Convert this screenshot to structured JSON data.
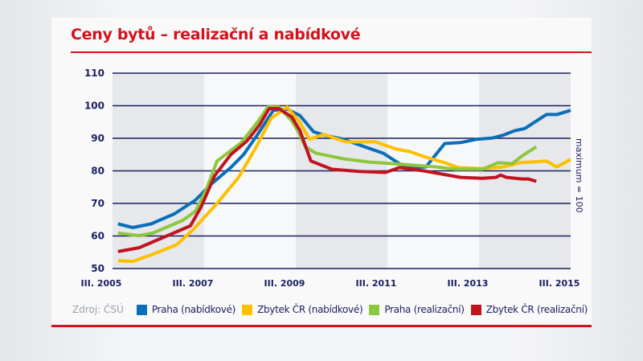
{
  "title": "Ceny bytů – realizační a nabídkové",
  "source": "Zdroj: ČSÚ",
  "chart_data": {
    "type": "line",
    "title": "Ceny bytů – realizační a nabídkové",
    "ylabel": "maximum = 100",
    "ylim": [
      50,
      110
    ],
    "yticks": [
      "50",
      "60",
      "70",
      "80",
      "90",
      "100",
      "110"
    ],
    "xlim": [
      2005.5,
      2015.5
    ],
    "xticks": [
      {
        "x": 2005.5,
        "label": "III. 2005"
      },
      {
        "x": 2007.5,
        "label": "III. 2007"
      },
      {
        "x": 2009.5,
        "label": "III. 2009"
      },
      {
        "x": 2011.5,
        "label": "III. 2011"
      },
      {
        "x": 2013.5,
        "label": "III. 2013"
      },
      {
        "x": 2015.5,
        "label": "III. 2015"
      }
    ],
    "grid": true,
    "legend": "bottom",
    "series": [
      {
        "name": "Praha (nabídkové)",
        "color": "#0a6fb8",
        "points": [
          [
            2005.62,
            63.7
          ],
          [
            2005.94,
            62.6
          ],
          [
            2006.34,
            63.7
          ],
          [
            2006.85,
            66.8
          ],
          [
            2007.31,
            71
          ],
          [
            2007.66,
            76
          ],
          [
            2008.08,
            81
          ],
          [
            2008.36,
            85
          ],
          [
            2008.66,
            91
          ],
          [
            2008.89,
            96
          ],
          [
            2009.01,
            98.6
          ],
          [
            2009.31,
            99
          ],
          [
            2009.59,
            97
          ],
          [
            2009.89,
            92
          ],
          [
            2010.11,
            91
          ],
          [
            2010.54,
            89.7
          ],
          [
            2011.0,
            87.4
          ],
          [
            2011.41,
            85.4
          ],
          [
            2011.76,
            82.2
          ],
          [
            2011.99,
            81
          ],
          [
            2012.34,
            81.2
          ],
          [
            2012.75,
            88.4
          ],
          [
            2013.1,
            88.7
          ],
          [
            2013.45,
            89.7
          ],
          [
            2013.8,
            90.1
          ],
          [
            2014.04,
            91
          ],
          [
            2014.27,
            92.3
          ],
          [
            2014.5,
            93
          ],
          [
            2014.97,
            97.3
          ],
          [
            2015.2,
            97.3
          ],
          [
            2015.5,
            98.6
          ]
        ]
      },
      {
        "name": "Zbytek ČR (nabídkové)",
        "color": "#fdc000",
        "points": [
          [
            2005.62,
            52.4
          ],
          [
            2005.94,
            52.2
          ],
          [
            2006.38,
            54.4
          ],
          [
            2006.9,
            57.3
          ],
          [
            2007.25,
            61.8
          ],
          [
            2007.78,
            70
          ],
          [
            2008.25,
            78
          ],
          [
            2008.61,
            86.7
          ],
          [
            2008.96,
            96.1
          ],
          [
            2009.31,
            99.6
          ],
          [
            2009.59,
            94.9
          ],
          [
            2009.8,
            89.7
          ],
          [
            2010.11,
            91.2
          ],
          [
            2010.59,
            88.9
          ],
          [
            2011.24,
            88.9
          ],
          [
            2011.69,
            86.7
          ],
          [
            2011.99,
            85.9
          ],
          [
            2012.34,
            84.2
          ],
          [
            2012.82,
            82.2
          ],
          [
            2013.04,
            81
          ],
          [
            2013.57,
            80.7
          ],
          [
            2014.04,
            81.2
          ],
          [
            2014.39,
            82.5
          ],
          [
            2014.97,
            83
          ],
          [
            2015.2,
            81.2
          ],
          [
            2015.5,
            83.5
          ]
        ]
      },
      {
        "name": "Praha (realizační)",
        "color": "#8dc63f",
        "points": [
          [
            2005.62,
            60.9
          ],
          [
            2006.08,
            60.1
          ],
          [
            2006.38,
            60.9
          ],
          [
            2007.03,
            64.8
          ],
          [
            2007.31,
            67.6
          ],
          [
            2007.55,
            74.3
          ],
          [
            2007.78,
            83
          ],
          [
            2008.31,
            88.7
          ],
          [
            2008.66,
            94.9
          ],
          [
            2008.89,
            99.6
          ],
          [
            2009.13,
            99.6
          ],
          [
            2009.41,
            95.4
          ],
          [
            2009.54,
            92.4
          ],
          [
            2009.71,
            87.4
          ],
          [
            2009.94,
            85.4
          ],
          [
            2010.54,
            83.7
          ],
          [
            2011.11,
            82.7
          ],
          [
            2011.82,
            82
          ],
          [
            2012.57,
            81.2
          ],
          [
            2012.99,
            80.5
          ],
          [
            2013.57,
            80.5
          ],
          [
            2013.92,
            82.5
          ],
          [
            2014.22,
            82.2
          ],
          [
            2014.45,
            84.7
          ],
          [
            2014.75,
            87.4
          ]
        ]
      },
      {
        "name": "Zbytek ČR (realizační)",
        "color": "#c0141f",
        "points": [
          [
            2005.62,
            55.2
          ],
          [
            2006.08,
            56.4
          ],
          [
            2006.78,
            60.6
          ],
          [
            2007.2,
            63.1
          ],
          [
            2007.43,
            68.8
          ],
          [
            2007.73,
            78.5
          ],
          [
            2008.08,
            85
          ],
          [
            2008.43,
            89.1
          ],
          [
            2008.71,
            94.1
          ],
          [
            2008.92,
            99.1
          ],
          [
            2009.13,
            99.1
          ],
          [
            2009.41,
            96.6
          ],
          [
            2009.59,
            92.4
          ],
          [
            2009.83,
            83
          ],
          [
            2010.29,
            80.5
          ],
          [
            2010.89,
            79.8
          ],
          [
            2011.46,
            79.5
          ],
          [
            2011.76,
            81
          ],
          [
            2012.29,
            80
          ],
          [
            2013.1,
            78
          ],
          [
            2013.57,
            77.7
          ],
          [
            2013.87,
            78
          ],
          [
            2013.97,
            78.7
          ],
          [
            2014.1,
            78
          ],
          [
            2014.45,
            77.5
          ],
          [
            2014.57,
            77.5
          ],
          [
            2014.75,
            76.8
          ]
        ]
      }
    ]
  }
}
